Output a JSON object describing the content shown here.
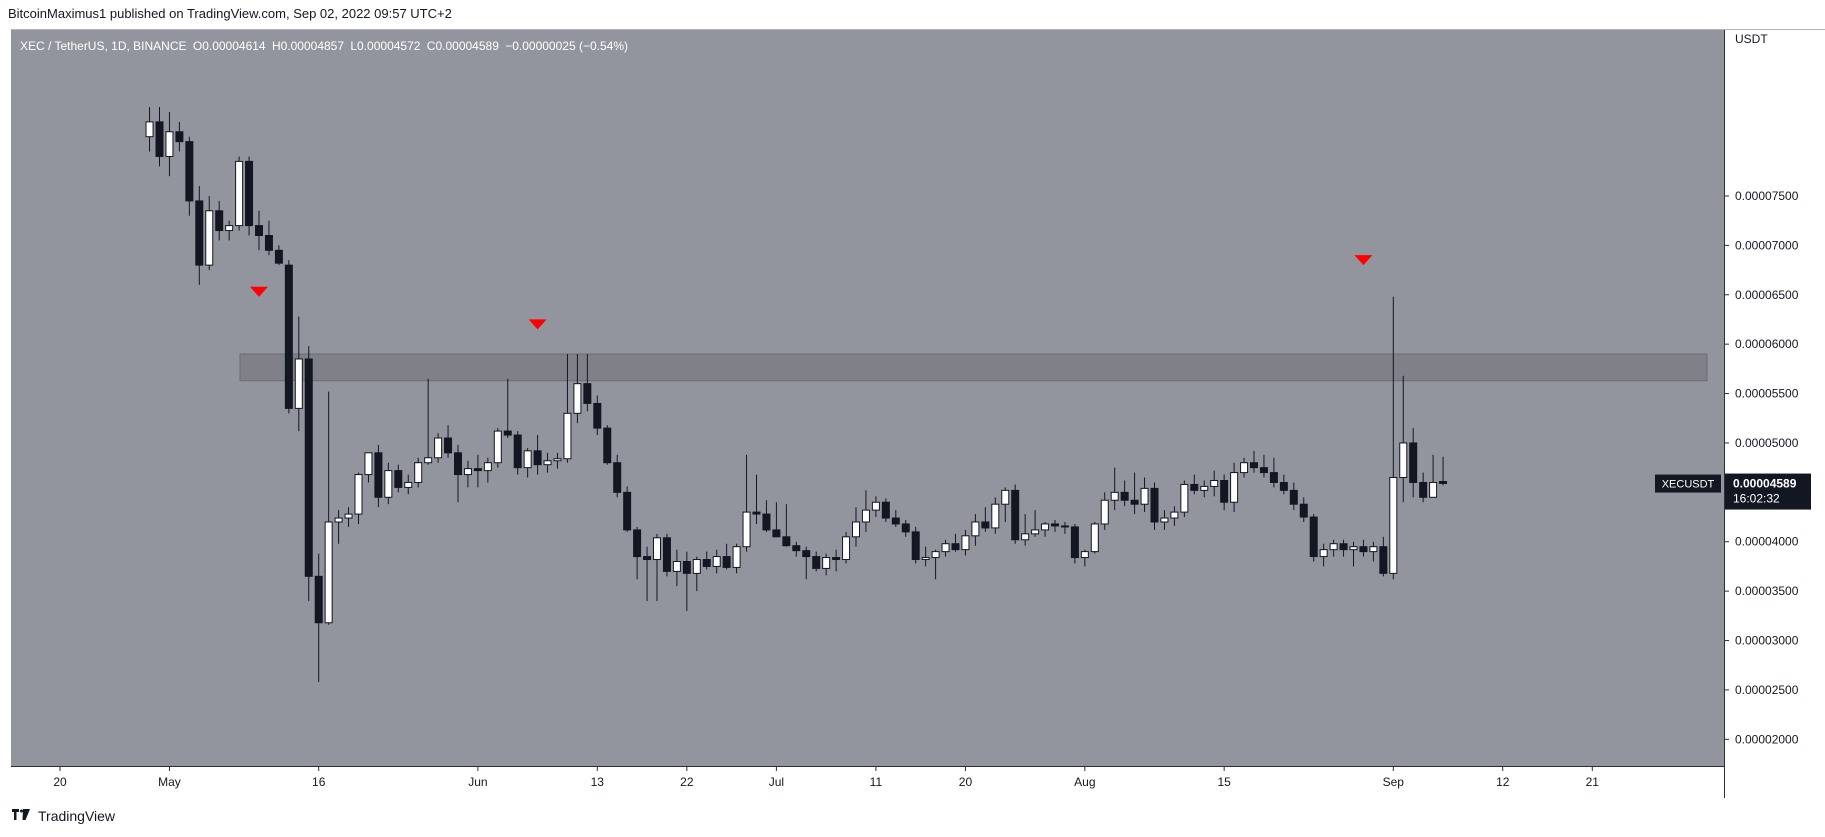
{
  "header": {
    "publisher": "BitcoinMaximus1 published on TradingView.com, Sep 02, 2022 09:57 UTC+2"
  },
  "legend": {
    "symbol": "XEC / TetherUS, 1D, BINANCE",
    "open_label": "O",
    "open": "0.00004614",
    "high_label": "H",
    "high": "0.00004857",
    "low_label": "L",
    "low": "0.00004572",
    "close_label": "C",
    "close": "0.00004589",
    "change": "−0.00000025 (−0.54%)"
  },
  "footer": {
    "brand": "TradingView"
  },
  "chart_data": {
    "type": "candlestick",
    "y_axis_label": "USDT",
    "ylim": [
      1.73e-05,
      9.18e-05
    ],
    "y_ticks": [
      "0.00002000",
      "0.00002500",
      "0.00003000",
      "0.00003500",
      "0.00004000",
      "0.00004500",
      "0.00005000",
      "0.00005500",
      "0.00006000",
      "0.00006500",
      "0.00007000",
      "0.00007500"
    ],
    "x_ticks": [
      {
        "label": "20",
        "i": 0
      },
      {
        "label": "May",
        "i": 11
      },
      {
        "label": "16",
        "i": 26
      },
      {
        "label": "Jun",
        "i": 42
      },
      {
        "label": "13",
        "i": 54
      },
      {
        "label": "22",
        "i": 63
      },
      {
        "label": "Jul",
        "i": 72
      },
      {
        "label": "11",
        "i": 82
      },
      {
        "label": "20",
        "i": 91
      },
      {
        "label": "Aug",
        "i": 103
      },
      {
        "label": "15",
        "i": 117
      },
      {
        "label": "Sep",
        "i": 134
      },
      {
        "label": "12",
        "i": 145
      },
      {
        "label": "21",
        "i": 154
      }
    ],
    "first_date": "Apr 20",
    "resistance_zone": [
      5.63e-05,
      5.9e-05
    ],
    "bearish_markers": [
      {
        "date": "May 10",
        "price": 6.53e-05
      },
      {
        "date": "Jun 07",
        "price": 6.2e-05
      },
      {
        "date": "Aug 29",
        "price": 6.85e-05
      }
    ],
    "last_price_label": "XECUSDT",
    "last_price": "0.00004589",
    "countdown": "16:02:32",
    "candles": [
      {
        "d": "Apr 29",
        "o": 8.1e-05,
        "h": 8.4e-05,
        "l": 7.95e-05,
        "c": 8.25e-05
      },
      {
        "d": "Apr 30",
        "o": 8.25e-05,
        "h": 8.4e-05,
        "l": 7.8e-05,
        "c": 7.9e-05
      },
      {
        "d": "May 01",
        "o": 7.9e-05,
        "h": 8.35e-05,
        "l": 7.7e-05,
        "c": 8.15e-05
      },
      {
        "d": "May 02",
        "o": 8.15e-05,
        "h": 8.25e-05,
        "l": 7.95e-05,
        "c": 8.05e-05
      },
      {
        "d": "May 03",
        "o": 8.05e-05,
        "h": 8.1e-05,
        "l": 7.3e-05,
        "c": 7.45e-05
      },
      {
        "d": "May 04",
        "o": 7.45e-05,
        "h": 7.6e-05,
        "l": 6.6e-05,
        "c": 6.8e-05
      },
      {
        "d": "May 05",
        "o": 6.8e-05,
        "h": 7.5e-05,
        "l": 6.75e-05,
        "c": 7.35e-05
      },
      {
        "d": "May 06",
        "o": 7.35e-05,
        "h": 7.45e-05,
        "l": 7.05e-05,
        "c": 7.15e-05
      },
      {
        "d": "May 07",
        "o": 7.15e-05,
        "h": 7.25e-05,
        "l": 7.05e-05,
        "c": 7.2e-05
      },
      {
        "d": "May 08",
        "o": 7.2e-05,
        "h": 7.9e-05,
        "l": 7.15e-05,
        "c": 7.85e-05
      },
      {
        "d": "May 09",
        "o": 7.85e-05,
        "h": 7.9e-05,
        "l": 7.1e-05,
        "c": 7.2e-05
      },
      {
        "d": "May 10",
        "o": 7.2e-05,
        "h": 7.35e-05,
        "l": 6.95e-05,
        "c": 7.1e-05
      },
      {
        "d": "May 11",
        "o": 7.1e-05,
        "h": 7.25e-05,
        "l": 6.9e-05,
        "c": 6.95e-05
      },
      {
        "d": "May 12",
        "o": 6.95e-05,
        "h": 7e-05,
        "l": 6.8e-05,
        "c": 6.82e-05
      },
      {
        "d": "May 13",
        "o": 6.8e-05,
        "h": 6.85e-05,
        "l": 5.3e-05,
        "c": 5.35e-05
      },
      {
        "d": "May 14",
        "o": 5.35e-05,
        "h": 6.28e-05,
        "l": 5.12e-05,
        "c": 5.85e-05
      },
      {
        "d": "May 15",
        "o": 5.85e-05,
        "h": 5.98e-05,
        "l": 3.4e-05,
        "c": 3.65e-05
      },
      {
        "d": "May 16",
        "o": 3.65e-05,
        "h": 3.88e-05,
        "l": 2.58e-05,
        "c": 3.18e-05
      },
      {
        "d": "May 17",
        "o": 3.18e-05,
        "h": 5.52e-05,
        "l": 3.16e-05,
        "c": 4.2e-05
      },
      {
        "d": "May 18",
        "o": 4.2e-05,
        "h": 4.32e-05,
        "l": 3.98e-05,
        "c": 4.24e-05
      },
      {
        "d": "May 19",
        "o": 4.24e-05,
        "h": 4.35e-05,
        "l": 4.15e-05,
        "c": 4.28e-05
      },
      {
        "d": "May 20",
        "o": 4.28e-05,
        "h": 4.7e-05,
        "l": 4.18e-05,
        "c": 4.68e-05
      },
      {
        "d": "May 21",
        "o": 4.68e-05,
        "h": 4.9e-05,
        "l": 4.6e-05,
        "c": 4.9e-05
      },
      {
        "d": "May 22",
        "o": 4.9e-05,
        "h": 4.98e-05,
        "l": 4.35e-05,
        "c": 4.45e-05
      },
      {
        "d": "May 23",
        "o": 4.45e-05,
        "h": 4.8e-05,
        "l": 4.38e-05,
        "c": 4.72e-05
      },
      {
        "d": "May 24",
        "o": 4.72e-05,
        "h": 4.78e-05,
        "l": 4.5e-05,
        "c": 4.55e-05
      },
      {
        "d": "May 25",
        "o": 4.55e-05,
        "h": 4.68e-05,
        "l": 4.48e-05,
        "c": 4.6e-05
      },
      {
        "d": "May 26",
        "o": 4.6e-05,
        "h": 4.85e-05,
        "l": 4.55e-05,
        "c": 4.8e-05
      },
      {
        "d": "May 27",
        "o": 4.8e-05,
        "h": 5.65e-05,
        "l": 4.78e-05,
        "c": 4.85e-05
      },
      {
        "d": "May 28",
        "o": 4.85e-05,
        "h": 5.1e-05,
        "l": 4.8e-05,
        "c": 5.05e-05
      },
      {
        "d": "May 29",
        "o": 5.05e-05,
        "h": 5.18e-05,
        "l": 4.85e-05,
        "c": 4.9e-05
      },
      {
        "d": "May 30",
        "o": 4.9e-05,
        "h": 4.98e-05,
        "l": 4.4e-05,
        "c": 4.68e-05
      },
      {
        "d": "May 31",
        "o": 4.68e-05,
        "h": 4.82e-05,
        "l": 4.55e-05,
        "c": 4.74e-05
      },
      {
        "d": "Jun 01",
        "o": 4.74e-05,
        "h": 4.88e-05,
        "l": 4.55e-05,
        "c": 4.72e-05
      },
      {
        "d": "Jun 02",
        "o": 4.72e-05,
        "h": 4.85e-05,
        "l": 4.6e-05,
        "c": 4.8e-05
      },
      {
        "d": "Jun 03",
        "o": 4.8e-05,
        "h": 5.15e-05,
        "l": 4.75e-05,
        "c": 5.12e-05
      },
      {
        "d": "Jun 04",
        "o": 5.12e-05,
        "h": 5.65e-05,
        "l": 5.05e-05,
        "c": 5.08e-05
      },
      {
        "d": "Jun 05",
        "o": 5.08e-05,
        "h": 5.12e-05,
        "l": 4.68e-05,
        "c": 4.75e-05
      },
      {
        "d": "Jun 06",
        "o": 4.75e-05,
        "h": 4.95e-05,
        "l": 4.65e-05,
        "c": 4.92e-05
      },
      {
        "d": "Jun 07",
        "o": 4.92e-05,
        "h": 5.08e-05,
        "l": 4.68e-05,
        "c": 4.78e-05
      },
      {
        "d": "Jun 08",
        "o": 4.78e-05,
        "h": 4.9e-05,
        "l": 4.7e-05,
        "c": 4.82e-05
      },
      {
        "d": "Jun 09",
        "o": 4.82e-05,
        "h": 4.9e-05,
        "l": 4.74e-05,
        "c": 4.84e-05
      },
      {
        "d": "Jun 10",
        "o": 4.84e-05,
        "h": 5.9e-05,
        "l": 4.8e-05,
        "c": 5.3e-05
      },
      {
        "d": "Jun 11",
        "o": 5.3e-05,
        "h": 5.9e-05,
        "l": 5.2e-05,
        "c": 5.6e-05
      },
      {
        "d": "Jun 12",
        "o": 5.6e-05,
        "h": 5.9e-05,
        "l": 5.32e-05,
        "c": 5.4e-05
      },
      {
        "d": "Jun 13",
        "o": 5.4e-05,
        "h": 5.48e-05,
        "l": 5.08e-05,
        "c": 5.15e-05
      },
      {
        "d": "Jun 14",
        "o": 5.15e-05,
        "h": 5.18e-05,
        "l": 4.78e-05,
        "c": 4.8e-05
      },
      {
        "d": "Jun 15",
        "o": 4.8e-05,
        "h": 4.88e-05,
        "l": 4.45e-05,
        "c": 4.5e-05
      },
      {
        "d": "Jun 16",
        "o": 4.5e-05,
        "h": 4.56e-05,
        "l": 4.1e-05,
        "c": 4.12e-05
      },
      {
        "d": "Jun 17",
        "o": 4.12e-05,
        "h": 4.15e-05,
        "l": 3.62e-05,
        "c": 3.85e-05
      },
      {
        "d": "Jun 18",
        "o": 3.85e-05,
        "h": 3.95e-05,
        "l": 3.4e-05,
        "c": 3.82e-05
      },
      {
        "d": "Jun 19",
        "o": 3.82e-05,
        "h": 4.08e-05,
        "l": 3.4e-05,
        "c": 4.04e-05
      },
      {
        "d": "Jun 20",
        "o": 4.04e-05,
        "h": 4.08e-05,
        "l": 3.65e-05,
        "c": 3.7e-05
      },
      {
        "d": "Jun 21",
        "o": 3.7e-05,
        "h": 3.92e-05,
        "l": 3.55e-05,
        "c": 3.8e-05
      },
      {
        "d": "Jun 22",
        "o": 3.8e-05,
        "h": 3.9e-05,
        "l": 3.3e-05,
        "c": 3.68e-05
      },
      {
        "d": "Jun 23",
        "o": 3.68e-05,
        "h": 3.85e-05,
        "l": 3.5e-05,
        "c": 3.82e-05
      },
      {
        "d": "Jun 24",
        "o": 3.82e-05,
        "h": 3.9e-05,
        "l": 3.72e-05,
        "c": 3.75e-05
      },
      {
        "d": "Jun 25",
        "o": 3.75e-05,
        "h": 3.92e-05,
        "l": 3.68e-05,
        "c": 3.85e-05
      },
      {
        "d": "Jun 26",
        "o": 3.85e-05,
        "h": 3.98e-05,
        "l": 3.72e-05,
        "c": 3.74e-05
      },
      {
        "d": "Jun 27",
        "o": 3.74e-05,
        "h": 3.98e-05,
        "l": 3.68e-05,
        "c": 3.95e-05
      },
      {
        "d": "Jun 28",
        "o": 3.95e-05,
        "h": 4.88e-05,
        "l": 3.9e-05,
        "c": 4.3e-05
      },
      {
        "d": "Jun 29",
        "o": 4.3e-05,
        "h": 4.68e-05,
        "l": 4.18e-05,
        "c": 4.28e-05
      },
      {
        "d": "Jun 30",
        "o": 4.28e-05,
        "h": 4.42e-05,
        "l": 4.1e-05,
        "c": 4.12e-05
      },
      {
        "d": "Jul 01",
        "o": 4.12e-05,
        "h": 4.4e-05,
        "l": 4.05e-05,
        "c": 4.05e-05
      },
      {
        "d": "Jul 02",
        "o": 4.05e-05,
        "h": 4.38e-05,
        "l": 3.95e-05,
        "c": 3.96e-05
      },
      {
        "d": "Jul 03",
        "o": 3.96e-05,
        "h": 4e-05,
        "l": 3.85e-05,
        "c": 3.91e-05
      },
      {
        "d": "Jul 04",
        "o": 3.91e-05,
        "h": 3.95e-05,
        "l": 3.62e-05,
        "c": 3.85e-05
      },
      {
        "d": "Jul 05",
        "o": 3.85e-05,
        "h": 3.9e-05,
        "l": 3.7e-05,
        "c": 3.73e-05
      },
      {
        "d": "Jul 06",
        "o": 3.73e-05,
        "h": 3.88e-05,
        "l": 3.66e-05,
        "c": 3.84e-05
      },
      {
        "d": "Jul 07",
        "o": 3.84e-05,
        "h": 3.92e-05,
        "l": 3.7e-05,
        "c": 3.82e-05
      },
      {
        "d": "Jul 08",
        "o": 3.82e-05,
        "h": 4.1e-05,
        "l": 3.78e-05,
        "c": 4.05e-05
      },
      {
        "d": "Jul 09",
        "o": 4.05e-05,
        "h": 4.35e-05,
        "l": 3.95e-05,
        "c": 4.2e-05
      },
      {
        "d": "Jul 10",
        "o": 4.2e-05,
        "h": 4.52e-05,
        "l": 4.1e-05,
        "c": 4.32e-05
      },
      {
        "d": "Jul 11",
        "o": 4.32e-05,
        "h": 4.46e-05,
        "l": 4.25e-05,
        "c": 4.4e-05
      },
      {
        "d": "Jul 12",
        "o": 4.4e-05,
        "h": 4.44e-05,
        "l": 4.2e-05,
        "c": 4.24e-05
      },
      {
        "d": "Jul 13",
        "o": 4.24e-05,
        "h": 4.32e-05,
        "l": 4.15e-05,
        "c": 4.18e-05
      },
      {
        "d": "Jul 14",
        "o": 4.18e-05,
        "h": 4.22e-05,
        "l": 4.05e-05,
        "c": 4.1e-05
      },
      {
        "d": "Jul 15",
        "o": 4.1e-05,
        "h": 4.15e-05,
        "l": 3.78e-05,
        "c": 3.82e-05
      },
      {
        "d": "Jul 16",
        "o": 3.82e-05,
        "h": 3.95e-05,
        "l": 3.75e-05,
        "c": 3.84e-05
      },
      {
        "d": "Jul 17",
        "o": 3.84e-05,
        "h": 3.92e-05,
        "l": 3.62e-05,
        "c": 3.9e-05
      },
      {
        "d": "Jul 18",
        "o": 3.9e-05,
        "h": 4.02e-05,
        "l": 3.85e-05,
        "c": 3.98e-05
      },
      {
        "d": "Jul 19",
        "o": 3.98e-05,
        "h": 4.08e-05,
        "l": 3.9e-05,
        "c": 3.92e-05
      },
      {
        "d": "Jul 20",
        "o": 3.92e-05,
        "h": 4.12e-05,
        "l": 3.86e-05,
        "c": 4.06e-05
      },
      {
        "d": "Jul 21",
        "o": 4.06e-05,
        "h": 4.28e-05,
        "l": 3.96e-05,
        "c": 4.2e-05
      },
      {
        "d": "Jul 22",
        "o": 4.2e-05,
        "h": 4.35e-05,
        "l": 4.1e-05,
        "c": 4.14e-05
      },
      {
        "d": "Jul 23",
        "o": 4.14e-05,
        "h": 4.45e-05,
        "l": 4.08e-05,
        "c": 4.38e-05
      },
      {
        "d": "Jul 24",
        "o": 4.38e-05,
        "h": 4.55e-05,
        "l": 4.2e-05,
        "c": 4.52e-05
      },
      {
        "d": "Jul 25",
        "o": 4.52e-05,
        "h": 4.58e-05,
        "l": 3.98e-05,
        "c": 4.02e-05
      },
      {
        "d": "Jul 26",
        "o": 4.02e-05,
        "h": 4.28e-05,
        "l": 3.96e-05,
        "c": 4.08e-05
      },
      {
        "d": "Jul 27",
        "o": 4.08e-05,
        "h": 4.32e-05,
        "l": 4.05e-05,
        "c": 4.12e-05
      },
      {
        "d": "Jul 28",
        "o": 4.12e-05,
        "h": 4.2e-05,
        "l": 4.05e-05,
        "c": 4.18e-05
      },
      {
        "d": "Jul 29",
        "o": 4.18e-05,
        "h": 4.22e-05,
        "l": 4.1e-05,
        "c": 4.16e-05
      },
      {
        "d": "Jul 30",
        "o": 4.16e-05,
        "h": 4.2e-05,
        "l": 4.08e-05,
        "c": 4.15e-05
      },
      {
        "d": "Jul 31",
        "o": 4.15e-05,
        "h": 4.18e-05,
        "l": 3.78e-05,
        "c": 3.84e-05
      },
      {
        "d": "Aug 01",
        "o": 3.84e-05,
        "h": 3.92e-05,
        "l": 3.75e-05,
        "c": 3.9e-05
      },
      {
        "d": "Aug 02",
        "o": 3.9e-05,
        "h": 4.2e-05,
        "l": 3.88e-05,
        "c": 4.18e-05
      },
      {
        "d": "Aug 03",
        "o": 4.18e-05,
        "h": 4.5e-05,
        "l": 4.12e-05,
        "c": 4.42e-05
      },
      {
        "d": "Aug 04",
        "o": 4.42e-05,
        "h": 4.75e-05,
        "l": 4.32e-05,
        "c": 4.5e-05
      },
      {
        "d": "Aug 05",
        "o": 4.5e-05,
        "h": 4.62e-05,
        "l": 4.36e-05,
        "c": 4.42e-05
      },
      {
        "d": "Aug 06",
        "o": 4.42e-05,
        "h": 4.7e-05,
        "l": 4.28e-05,
        "c": 4.38e-05
      },
      {
        "d": "Aug 07",
        "o": 4.38e-05,
        "h": 4.65e-05,
        "l": 4.3e-05,
        "c": 4.54e-05
      },
      {
        "d": "Aug 08",
        "o": 4.54e-05,
        "h": 4.6e-05,
        "l": 4.12e-05,
        "c": 4.2e-05
      },
      {
        "d": "Aug 09",
        "o": 4.2e-05,
        "h": 4.32e-05,
        "l": 4.12e-05,
        "c": 4.24e-05
      },
      {
        "d": "Aug 10",
        "o": 4.24e-05,
        "h": 4.36e-05,
        "l": 4.16e-05,
        "c": 4.3e-05
      },
      {
        "d": "Aug 11",
        "o": 4.3e-05,
        "h": 4.62e-05,
        "l": 4.25e-05,
        "c": 4.58e-05
      },
      {
        "d": "Aug 12",
        "o": 4.58e-05,
        "h": 4.68e-05,
        "l": 4.48e-05,
        "c": 4.52e-05
      },
      {
        "d": "Aug 13",
        "o": 4.52e-05,
        "h": 4.62e-05,
        "l": 4.45e-05,
        "c": 4.56e-05
      },
      {
        "d": "Aug 14",
        "o": 4.56e-05,
        "h": 4.72e-05,
        "l": 4.46e-05,
        "c": 4.62e-05
      },
      {
        "d": "Aug 15",
        "o": 4.62e-05,
        "h": 4.68e-05,
        "l": 4.32e-05,
        "c": 4.4e-05
      },
      {
        "d": "Aug 16",
        "o": 4.4e-05,
        "h": 4.8e-05,
        "l": 4.3e-05,
        "c": 4.7e-05
      },
      {
        "d": "Aug 17",
        "o": 4.7e-05,
        "h": 4.85e-05,
        "l": 4.65e-05,
        "c": 4.8e-05
      },
      {
        "d": "Aug 18",
        "o": 4.8e-05,
        "h": 4.92e-05,
        "l": 4.7e-05,
        "c": 4.75e-05
      },
      {
        "d": "Aug 19",
        "o": 4.75e-05,
        "h": 4.88e-05,
        "l": 4.65e-05,
        "c": 4.7e-05
      },
      {
        "d": "Aug 20",
        "o": 4.7e-05,
        "h": 4.85e-05,
        "l": 4.55e-05,
        "c": 4.6e-05
      },
      {
        "d": "Aug 21",
        "o": 4.6e-05,
        "h": 4.68e-05,
        "l": 4.48e-05,
        "c": 4.52e-05
      },
      {
        "d": "Aug 22",
        "o": 4.52e-05,
        "h": 4.6e-05,
        "l": 4.32e-05,
        "c": 4.38e-05
      },
      {
        "d": "Aug 23",
        "o": 4.38e-05,
        "h": 4.45e-05,
        "l": 4.2e-05,
        "c": 4.25e-05
      },
      {
        "d": "Aug 24",
        "o": 4.25e-05,
        "h": 4.28e-05,
        "l": 3.8e-05,
        "c": 3.85e-05
      },
      {
        "d": "Aug 25",
        "o": 3.85e-05,
        "h": 3.98e-05,
        "l": 3.75e-05,
        "c": 3.92e-05
      },
      {
        "d": "Aug 26",
        "o": 3.92e-05,
        "h": 4.02e-05,
        "l": 3.85e-05,
        "c": 3.98e-05
      },
      {
        "d": "Aug 27",
        "o": 3.98e-05,
        "h": 4.02e-05,
        "l": 3.85e-05,
        "c": 3.92e-05
      },
      {
        "d": "Aug 28",
        "o": 3.92e-05,
        "h": 4e-05,
        "l": 3.75e-05,
        "c": 3.95e-05
      },
      {
        "d": "Aug 29",
        "o": 3.95e-05,
        "h": 4.02e-05,
        "l": 3.85e-05,
        "c": 3.9e-05
      },
      {
        "d": "Aug 30",
        "o": 3.9e-05,
        "h": 4e-05,
        "l": 3.8e-05,
        "c": 3.95e-05
      },
      {
        "d": "Aug 31",
        "o": 3.95e-05,
        "h": 4.05e-05,
        "l": 3.65e-05,
        "c": 3.68e-05
      },
      {
        "d": "Sep 01",
        "o": 3.68e-05,
        "h": 6.48e-05,
        "l": 3.62e-05,
        "c": 4.65e-05
      },
      {
        "d": "Sep 02",
        "o": 4.65e-05,
        "h": 5.68e-05,
        "l": 4.4e-05,
        "c": 5e-05
      },
      {
        "d": "Sep 03",
        "o": 5e-05,
        "h": 5.15e-05,
        "l": 4.45e-05,
        "c": 4.6e-05
      },
      {
        "d": "Sep 04",
        "o": 4.6e-05,
        "h": 4.7e-05,
        "l": 4.4e-05,
        "c": 4.45e-05
      },
      {
        "d": "Sep 05",
        "o": 4.45e-05,
        "h": 4.88e-05,
        "l": 4.45e-05,
        "c": 4.6e-05
      },
      {
        "d": "Sep 06",
        "o": 4.61e-05,
        "h": 4.86e-05,
        "l": 4.57e-05,
        "c": 4.59e-05
      }
    ]
  }
}
